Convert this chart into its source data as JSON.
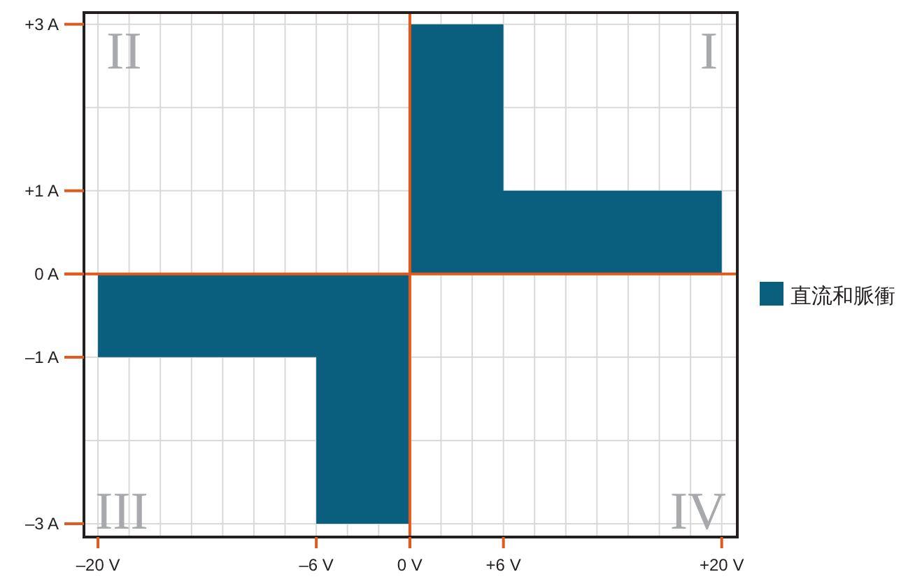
{
  "chart_data": {
    "type": "area",
    "x": [
      -20,
      -6,
      -6,
      0,
      0,
      6,
      6,
      20
    ],
    "series": [
      {
        "name": "直流和脈衝",
        "color": "#0a5f7e",
        "values": [
          -1,
          -1,
          -3,
          -3,
          3,
          3,
          1,
          1
        ]
      }
    ],
    "xlim": [
      -20.9,
      21
    ],
    "ylim": [
      -3.16,
      3.14
    ],
    "xticks": [
      {
        "value": -20,
        "label": "–20 V"
      },
      {
        "value": -18,
        "label": null
      },
      {
        "value": -16,
        "label": null
      },
      {
        "value": -14,
        "label": null
      },
      {
        "value": -12,
        "label": null
      },
      {
        "value": -10,
        "label": null
      },
      {
        "value": -8,
        "label": null
      },
      {
        "value": -6,
        "label": "–6 V"
      },
      {
        "value": -4,
        "label": null
      },
      {
        "value": -2,
        "label": null
      },
      {
        "value": 0,
        "label": "0 V"
      },
      {
        "value": 2,
        "label": null
      },
      {
        "value": 4,
        "label": null
      },
      {
        "value": 6,
        "label": "+6 V"
      },
      {
        "value": 8,
        "label": null
      },
      {
        "value": 10,
        "label": null
      },
      {
        "value": 12,
        "label": null
      },
      {
        "value": 14,
        "label": null
      },
      {
        "value": 16,
        "label": null
      },
      {
        "value": 18,
        "label": null
      },
      {
        "value": 20,
        "label": "+20 V"
      }
    ],
    "yticks": [
      {
        "value": 3,
        "label": "+3 A"
      },
      {
        "value": 2,
        "label": null
      },
      {
        "value": 1,
        "label": "+1 A"
      },
      {
        "value": 0,
        "label": "0 A"
      },
      {
        "value": -1,
        "label": "–1 A"
      },
      {
        "value": -2,
        "label": null
      },
      {
        "value": -3,
        "label": "–3 A"
      }
    ],
    "grid": true,
    "annotations": [
      "I",
      "II",
      "III",
      "IV"
    ],
    "legend": "right"
  }
}
